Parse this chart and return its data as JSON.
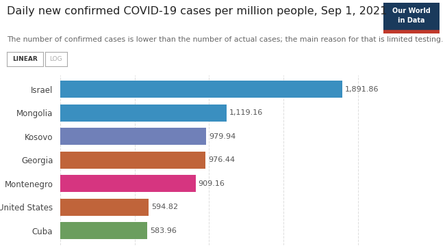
{
  "title": "Daily new confirmed COVID-19 cases per million people, Sep 1, 2021",
  "subtitle": "The number of confirmed cases is lower than the number of actual cases; the main reason for that is limited testing.",
  "countries": [
    "Israel",
    "Mongolia",
    "Kosovo",
    "Georgia",
    "Montenegro",
    "United States",
    "Cuba"
  ],
  "values": [
    1891.86,
    1119.16,
    979.94,
    976.44,
    909.16,
    594.82,
    583.96
  ],
  "colors": [
    "#3a8fc0",
    "#3a8fc0",
    "#7080b8",
    "#c0643a",
    "#d63580",
    "#c0643a",
    "#6b9e5e"
  ],
  "title_fontsize": 11.5,
  "subtitle_fontsize": 7.8,
  "label_fontsize": 8.5,
  "value_fontsize": 8,
  "bg_color": "#ffffff",
  "grid_color": "#dddddd",
  "xlim": [
    0,
    2150
  ],
  "logo_text_line1": "Our World",
  "logo_text_line2": "in Data",
  "logo_bg": "#1a3a5c",
  "logo_stripe": "#c0392b",
  "linear_btn_text": "LINEAR",
  "log_btn_text": "LOG"
}
